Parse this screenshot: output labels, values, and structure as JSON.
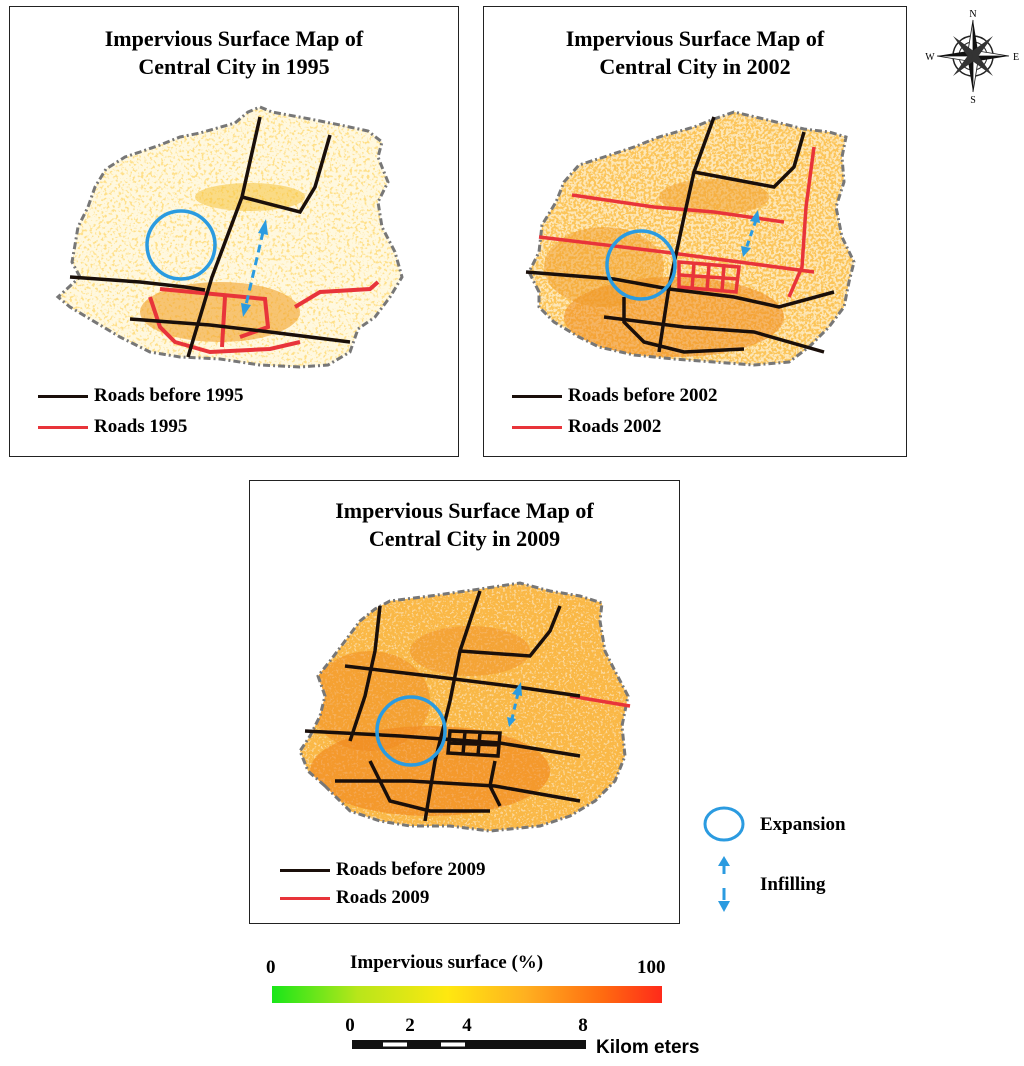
{
  "panels": [
    {
      "id": "1995",
      "title_line1": "Impervious Surface Map of",
      "title_line2": "Central City in 1995",
      "legend_old": "Roads before 1995",
      "legend_new": "Roads 1995"
    },
    {
      "id": "2002",
      "title_line1": "Impervious Surface Map of",
      "title_line2": "Central City in 2002",
      "legend_old": "Roads before 2002",
      "legend_new": "Roads 2002"
    },
    {
      "id": "2009",
      "title_line1": "Impervious Surface Map of",
      "title_line2": "Central City in 2009",
      "legend_old": "Roads before 2009",
      "legend_new": "Roads 2009"
    }
  ],
  "compass": {
    "n": "N",
    "s": "S",
    "e": "E",
    "w": "W"
  },
  "key": {
    "expansion_label": "Expansion",
    "infilling_label": "Infilling"
  },
  "colorbar": {
    "title": "Impervious surface (%)",
    "min_label": "0",
    "max_label": "100"
  },
  "scalebar": {
    "ticks": [
      "0",
      "2",
      "4",
      "8"
    ],
    "unit": "Kilom eters"
  },
  "colors": {
    "old_roads": "#1a0f0a",
    "new_roads": "#e8343a",
    "marker": "#2b9be0",
    "boundary": "#777777"
  }
}
